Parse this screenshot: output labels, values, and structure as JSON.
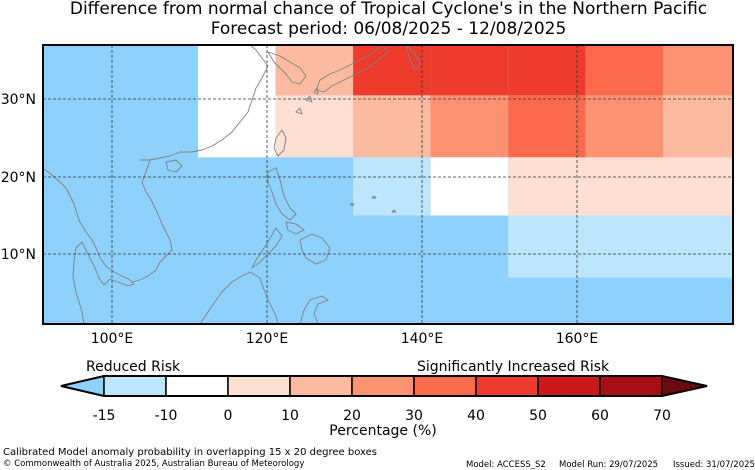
{
  "title_line1": "Difference from normal chance of Tropical Cyclone's in the Northern Pacific",
  "title_line2": "Forecast period: 06/08/2025 - 12/08/2025",
  "map": {
    "lon_ticks": [
      "100°E",
      "120°E",
      "140°E",
      "160°E"
    ],
    "lat_ticks": [
      "30°N",
      "20°N",
      "10°N"
    ],
    "lon_range": [
      91,
      180
    ],
    "lat_range": [
      1,
      37
    ],
    "grid_lines_dashed": true
  },
  "risk_boxes": [
    {
      "lon": [
        111,
        121
      ],
      "lat": [
        22.5,
        37
      ],
      "bin": "-10 to 0"
    },
    {
      "lon": [
        121,
        131
      ],
      "lat": [
        30.5,
        37
      ],
      "bin": "10 to 20"
    },
    {
      "lon": [
        121,
        131
      ],
      "lat": [
        22.5,
        30.5
      ],
      "bin": "0 to 10"
    },
    {
      "lon": [
        131,
        141
      ],
      "lat": [
        30.5,
        37
      ],
      "bin": "40 to 50"
    },
    {
      "lon": [
        131,
        141
      ],
      "lat": [
        22.5,
        30.5
      ],
      "bin": "10 to 20"
    },
    {
      "lon": [
        141,
        151
      ],
      "lat": [
        30.5,
        37
      ],
      "bin": "40 to 50"
    },
    {
      "lon": [
        141,
        151
      ],
      "lat": [
        22.5,
        30.5
      ],
      "bin": "20 to 30"
    },
    {
      "lon": [
        151,
        161
      ],
      "lat": [
        30.5,
        37
      ],
      "bin": "40 to 50"
    },
    {
      "lon": [
        151,
        161
      ],
      "lat": [
        22.5,
        30.5
      ],
      "bin": "30 to 40"
    },
    {
      "lon": [
        161,
        171
      ],
      "lat": [
        30.5,
        37
      ],
      "bin": "30 to 40"
    },
    {
      "lon": [
        161,
        171
      ],
      "lat": [
        22.5,
        30.5
      ],
      "bin": "20 to 30"
    },
    {
      "lon": [
        171,
        180
      ],
      "lat": [
        30.5,
        37
      ],
      "bin": "20 to 30"
    },
    {
      "lon": [
        171,
        180
      ],
      "lat": [
        22.5,
        30.5
      ],
      "bin": "10 to 20"
    },
    {
      "lon": [
        131,
        141
      ],
      "lat": [
        15,
        22.5
      ],
      "bin": "-15 to -10"
    },
    {
      "lon": [
        141,
        151
      ],
      "lat": [
        15,
        22.5
      ],
      "bin": "-10 to 0"
    },
    {
      "lon": [
        151,
        180
      ],
      "lat": [
        15,
        22.5
      ],
      "bin": "0 to 10"
    },
    {
      "lon": [
        151,
        180
      ],
      "lat": [
        7,
        15
      ],
      "bin": "-15 to -10"
    }
  ],
  "background_bin": "below -15",
  "colorbar": {
    "label_left": "Reduced Risk",
    "label_right": "Significantly Increased Risk",
    "tick_labels": [
      "-15",
      "-10",
      "0",
      "10",
      "20",
      "30",
      "40",
      "50",
      "60",
      "70"
    ],
    "axis_label": "Percentage (%)",
    "under_color": "#8dd1fc",
    "over_color": "#6b0a0e",
    "colors": [
      "#bde6fd",
      "#ffffff",
      "#fee0d2",
      "#fcbba1",
      "#fc9272",
      "#fb6a4a",
      "#ef3b2c",
      "#cb181d",
      "#a50f15"
    ]
  },
  "colors": {
    "below -15": "#8dd1fc",
    "-15 to -10": "#bde6fd",
    "-10 to 0": "#ffffff",
    "0 to 10": "#fee0d2",
    "10 to 20": "#fcbba1",
    "20 to 30": "#fc9272",
    "30 to 40": "#fb6a4a",
    "40 to 50": "#ef3b2c",
    "coastline": "#808080"
  },
  "footer": {
    "note": "Calibrated Model anomaly probability in overlapping 15 x 20 degree boxes",
    "copyright": "© Commonwealth of Australia 2025, Australian Bureau of Meteorology",
    "model": "Model: ACCESS_S2",
    "run": "Model Run: 29/07/2025",
    "issued": "Issued: 31/07/2025"
  }
}
